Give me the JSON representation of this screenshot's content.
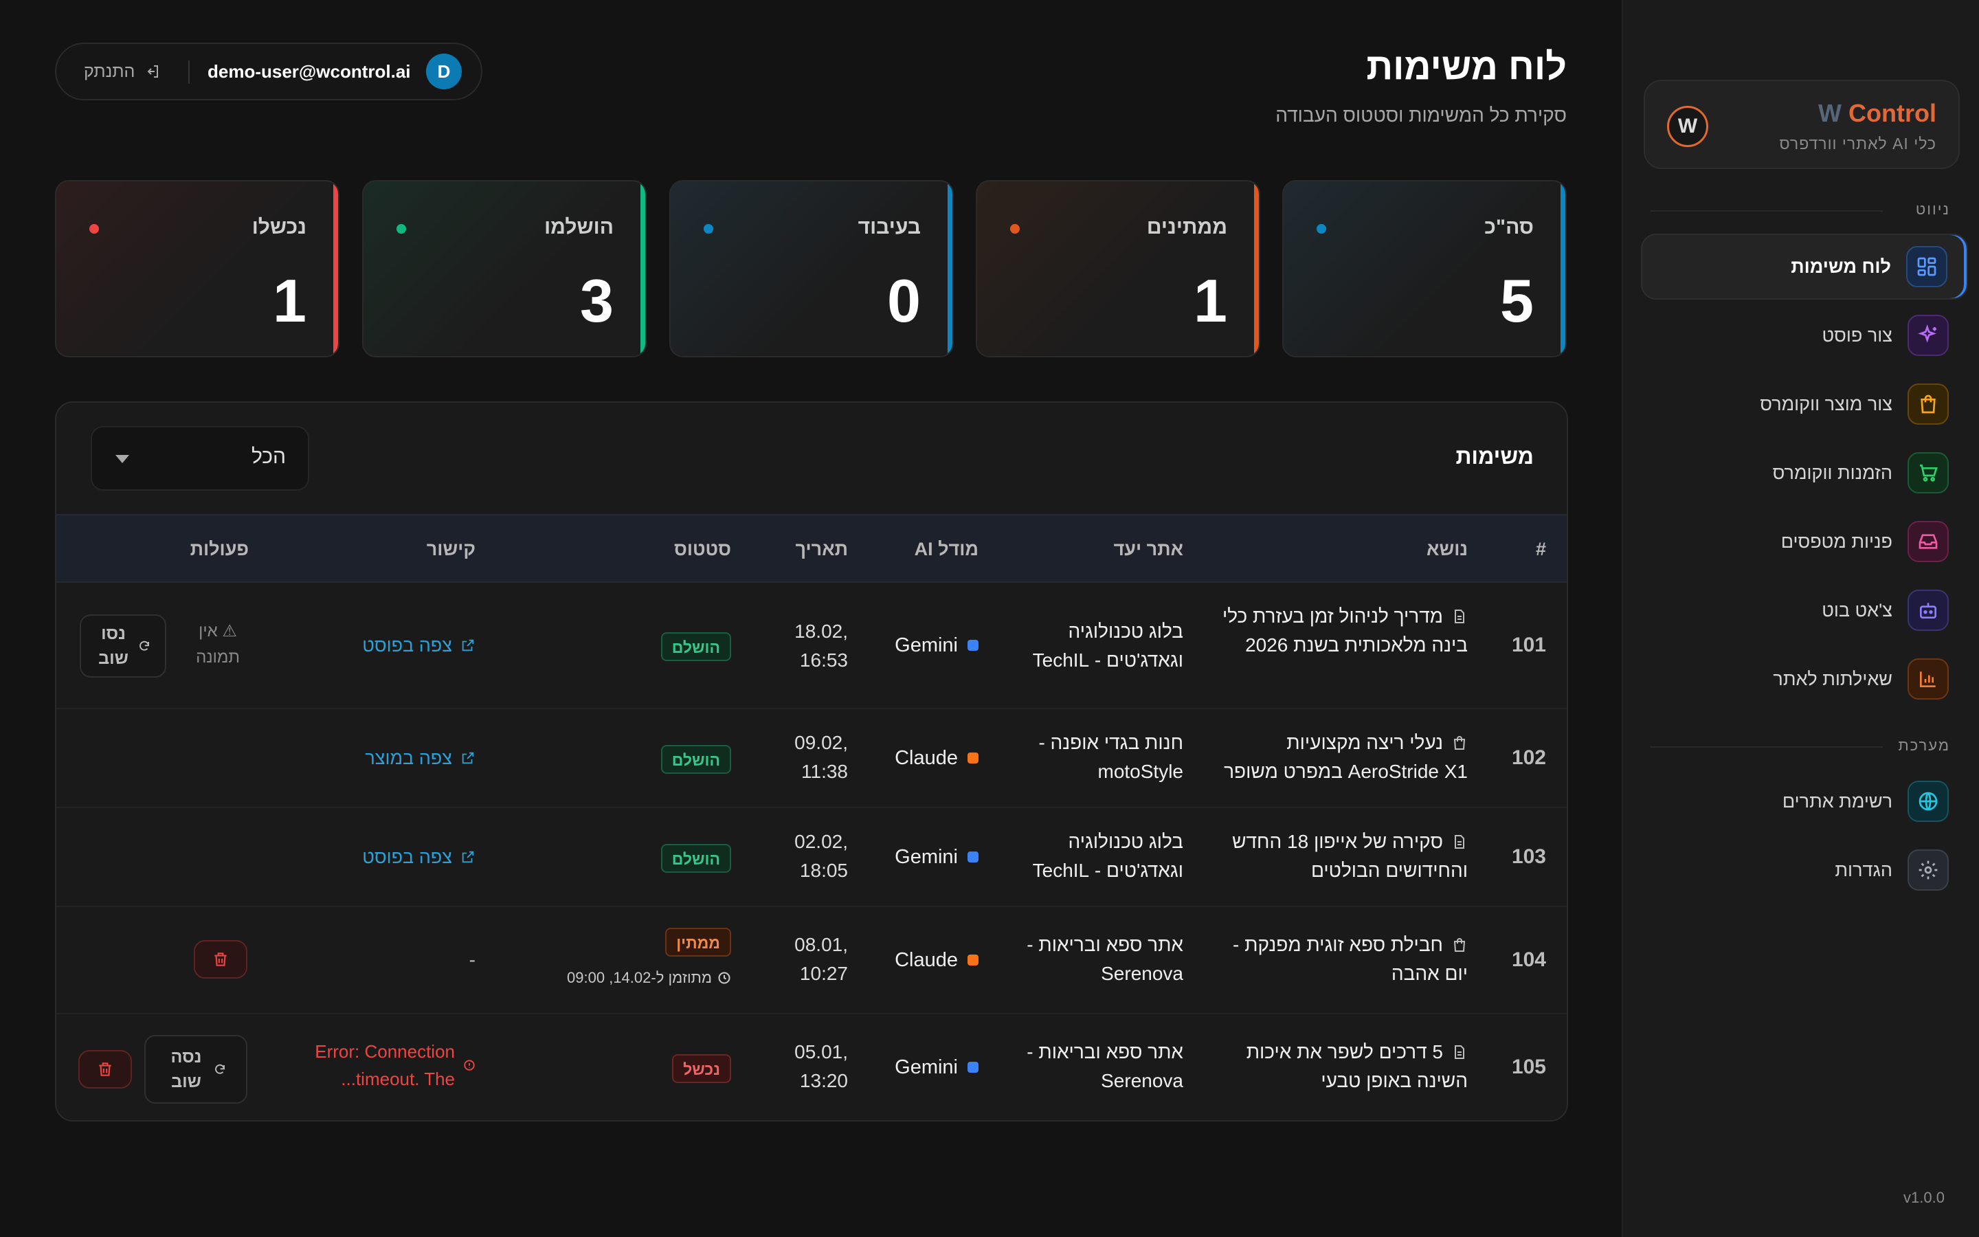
{
  "brand": {
    "name_w": "W",
    "name_rest": " Control",
    "subtitle": "כלי AI לאתרי וורדפרס",
    "logo_letter": "W",
    "accent": "#e2683a"
  },
  "nav": {
    "section_nav": "ניווט",
    "section_system": "מערכת",
    "items": [
      {
        "label": "לוח משימות",
        "icon": "dashboard-grid-icon",
        "color": "#3b82f6",
        "active": true
      },
      {
        "label": "צור פוסט",
        "icon": "sparkle-icon",
        "color": "#a855f7"
      },
      {
        "label": "צור מוצר ווקומרס",
        "icon": "shopping-bag-icon",
        "color": "#f59e0b"
      },
      {
        "label": "הזמנות ווקומרס",
        "icon": "shopping-cart-icon",
        "color": "#22c55e"
      },
      {
        "label": "פניות מטפסים",
        "icon": "inbox-icon",
        "color": "#ec4899"
      },
      {
        "label": "צ'אט בוט",
        "icon": "bot-icon",
        "color": "#6366f1"
      },
      {
        "label": "שאילתות לאתר",
        "icon": "bar-chart-icon",
        "color": "#f97316"
      }
    ],
    "system_items": [
      {
        "label": "רשימת אתרים",
        "icon": "globe-icon",
        "color": "#06b6d4"
      },
      {
        "label": "הגדרות",
        "icon": "gear-icon",
        "color": "#9ca3af"
      }
    ],
    "version": "v1.0.0"
  },
  "header": {
    "title": "לוח משימות",
    "subtitle": "סקירת כל המשימות וסטטוס העבודה",
    "user_email": "demo-user@wcontrol.ai",
    "avatar_letter": "D",
    "logout_label": "התנתק"
  },
  "stats": [
    {
      "label": "סה\"כ",
      "value": "5",
      "color": "#0c87c4"
    },
    {
      "label": "ממתינים",
      "value": "1",
      "color": "#e2561f"
    },
    {
      "label": "בעיבוד",
      "value": "0",
      "color": "#0c87c4"
    },
    {
      "label": "הושלמו",
      "value": "3",
      "color": "#10b981"
    },
    {
      "label": "נכשלו",
      "value": "1",
      "color": "#ef4444"
    }
  ],
  "tasks": {
    "title": "משימות",
    "filter_value": "הכל",
    "columns": {
      "num": "#",
      "topic": "נושא",
      "site": "אתר יעד",
      "model": "מודל AI",
      "date": "תאריך",
      "status": "סטטוס",
      "link": "קישור",
      "actions": "פעולות"
    },
    "rows": [
      {
        "num": "101",
        "topic": "מדריך לניהול זמן בעזרת כלי בינה מלאכותית בשנת 2026",
        "topic_icon": "document-icon",
        "site": "בלוג טכנולוגיה וגאדג'טים - TechIL",
        "model": "Gemini",
        "model_color": "#3b82f6",
        "date": "18.02,",
        "time": "16:53",
        "status": "הושלם",
        "link": "צפה בפוסט",
        "no_image": "אין תמונה",
        "retry": "נסו שוב"
      },
      {
        "num": "102",
        "topic": "נעלי ריצה מקצועיות AeroStride X1 במפרט משופר",
        "topic_icon": "shopping-bag-icon",
        "site": "חנות בגדי אופנה - motoStyle",
        "model": "Claude",
        "model_color": "#f97316",
        "date": "09.02,",
        "time": "11:38",
        "status": "הושלם",
        "link": "צפה במוצר"
      },
      {
        "num": "103",
        "topic": "סקירה של אייפון 18 החדש והחידושים הבולטים",
        "topic_icon": "document-icon",
        "site": "בלוג טכנולוגיה וגאדג'טים - TechIL",
        "model": "Gemini",
        "model_color": "#3b82f6",
        "date": "02.02,",
        "time": "18:05",
        "status": "הושלם",
        "link": "צפה בפוסט"
      },
      {
        "num": "104",
        "topic": "חבילת ספא זוגית מפנקת - יום אהבה",
        "topic_icon": "shopping-bag-icon",
        "site": "אתר ספא ובריאות - Serenova",
        "model": "Claude",
        "model_color": "#f97316",
        "date": "08.01,",
        "time": "10:27",
        "status": "ממתין",
        "scheduled": "מתוזמן ל-14.02, 09:00",
        "link": "-"
      },
      {
        "num": "105",
        "topic": "5 דרכים לשפר את איכות השינה באופן טבעי",
        "topic_icon": "document-icon",
        "site": "אתר ספא ובריאות - Serenova",
        "model": "Gemini",
        "model_color": "#3b82f6",
        "date": "05.01,",
        "time": "13:20",
        "status": "נכשל",
        "error_line1": "Error: Connection",
        "error_line2": "...timeout. The",
        "retry": "נסה שוב"
      }
    ]
  }
}
